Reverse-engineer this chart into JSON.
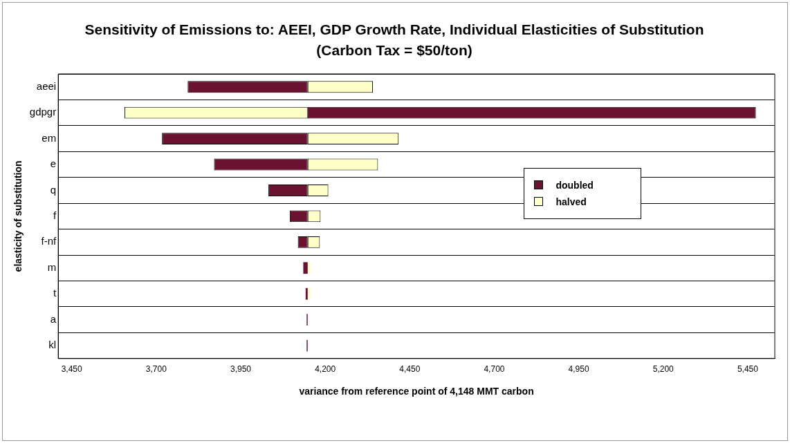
{
  "chart_data": {
    "type": "bar",
    "orientation": "horizontal",
    "title": "Sensitivity of Emissions to: AEEI, GDP Growth Rate, Individual Elasticities of Substitution   (Carbon Tax = $50/ton)",
    "xlabel": "variance from reference point of 4,148 MMT carbon",
    "ylabel": "elasticity of substitution",
    "categories": [
      "aeei",
      "gdpgr",
      "em",
      "e",
      "q",
      "f",
      "f-nf",
      "m",
      "t",
      "a",
      "kl"
    ],
    "series": [
      {
        "name": "doubled",
        "color": "#6b1230",
        "base": [
          3793,
          4148,
          3717,
          3871,
          4032,
          4095,
          4119,
          4135,
          4142,
          4145,
          4145
        ],
        "values": [
          355,
          1326,
          431,
          277,
          116,
          53,
          29,
          13,
          6,
          3,
          3
        ]
      },
      {
        "name": "halved",
        "color": "#ffffc8",
        "base": [
          4148,
          3606,
          4148,
          4148,
          4148,
          4148,
          4148,
          4148,
          4148,
          null,
          null
        ],
        "values": [
          193,
          542,
          269,
          208,
          61,
          38,
          36,
          8,
          8,
          null,
          null
        ]
      }
    ],
    "xlim": [
      3410,
      5530
    ],
    "xticks": [
      {
        "value": 3450,
        "label": "3,450"
      },
      {
        "value": 3700,
        "label": "3,700"
      },
      {
        "value": 3950,
        "label": "3,950"
      },
      {
        "value": 4200,
        "label": "4,200"
      },
      {
        "value": 4450,
        "label": "4,450"
      },
      {
        "value": 4700,
        "label": "4,700"
      },
      {
        "value": 4950,
        "label": "4,950"
      },
      {
        "value": 5200,
        "label": "5,200"
      },
      {
        "value": 5450,
        "label": "5,450"
      }
    ],
    "grid": "y",
    "legend": "right"
  }
}
